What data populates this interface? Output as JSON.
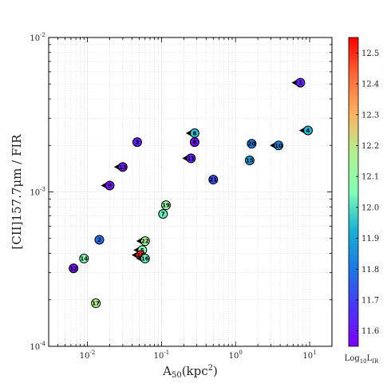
{
  "chart_data": {
    "type": "scatter",
    "xscale": "log",
    "yscale": "log",
    "xlim": [
      0.003,
      20
    ],
    "ylim": [
      0.0001,
      0.01
    ],
    "xlabel_main": "A",
    "xlabel_sub": "50",
    "xlabel_unit": "(kpc",
    "xlabel_sup": "2",
    "xlabel_close": ")",
    "ylabel": "[CII]157.7μm / FIR",
    "grid": true,
    "x_ticks": [
      {
        "value": 0.01,
        "base": "10",
        "exp": "-2"
      },
      {
        "value": 0.1,
        "base": "10",
        "exp": "-1"
      },
      {
        "value": 1,
        "base": "10",
        "exp": "0"
      },
      {
        "value": 10,
        "base": "10",
        "exp": "1"
      }
    ],
    "y_ticks": [
      {
        "value": 0.01,
        "base": "10",
        "exp": "-2"
      },
      {
        "value": 0.001,
        "base": "10",
        "exp": "-3"
      },
      {
        "value": 0.0001,
        "base": "10",
        "exp": "-4"
      }
    ],
    "colorbar": {
      "label_main": "Log",
      "label_sub": "10",
      "label_tail": "L",
      "label_tail_sub": "IR",
      "vmin": 11.55,
      "vmax": 12.55,
      "ticks": [
        "11.6",
        "11.7",
        "11.8",
        "11.9",
        "12.0",
        "12.1",
        "12.2",
        "12.3",
        "12.4",
        "12.5"
      ]
    },
    "points": [
      {
        "id": "1",
        "x": 7.5,
        "y": 0.0051,
        "logLIR": 11.62,
        "marker": "arrow"
      },
      {
        "id": "4",
        "x": 9.5,
        "y": 0.0025,
        "logLIR": 11.93,
        "marker": "arrow"
      },
      {
        "id": "8",
        "x": 0.28,
        "y": 0.0024,
        "logLIR": 11.95,
        "marker": "arrow"
      },
      {
        "id": "6",
        "x": 0.28,
        "y": 0.0021,
        "logLIR": 11.58,
        "marker": "circle"
      },
      {
        "id": "3",
        "x": 0.047,
        "y": 0.0021,
        "logLIR": 11.62,
        "marker": "circle"
      },
      {
        "id": "20",
        "x": 1.65,
        "y": 0.00205,
        "logLIR": 11.8,
        "marker": "circle"
      },
      {
        "id": "10",
        "x": 3.8,
        "y": 0.002,
        "logLIR": 11.82,
        "marker": "arrow"
      },
      {
        "id": "11",
        "x": 0.25,
        "y": 0.00165,
        "logLIR": 11.62,
        "marker": "arrow"
      },
      {
        "id": "15",
        "x": 1.55,
        "y": 0.0016,
        "logLIR": 11.88,
        "marker": "circle"
      },
      {
        "id": "13",
        "x": 0.03,
        "y": 0.00145,
        "logLIR": 11.6,
        "marker": "arrow"
      },
      {
        "id": "21",
        "x": 0.5,
        "y": 0.0012,
        "logLIR": 11.72,
        "marker": "circle"
      },
      {
        "id": "9",
        "x": 0.02,
        "y": 0.0011,
        "logLIR": 11.58,
        "marker": "arrow"
      },
      {
        "id": "19",
        "x": 0.115,
        "y": 0.00082,
        "logLIR": 12.1,
        "marker": "circle"
      },
      {
        "id": "7",
        "x": 0.105,
        "y": 0.00072,
        "logLIR": 12.02,
        "marker": "circle"
      },
      {
        "id": "2",
        "x": 0.0145,
        "y": 0.00049,
        "logLIR": 11.78,
        "marker": "circle"
      },
      {
        "id": "22",
        "x": 0.06,
        "y": 0.00048,
        "logLIR": 12.15,
        "marker": "arrow"
      },
      {
        "id": "5",
        "x": 0.055,
        "y": 0.00042,
        "logLIR": 12.05,
        "marker": "arrow"
      },
      {
        "id": "18",
        "x": 0.052,
        "y": 0.00039,
        "logLIR": 12.52,
        "marker": "arrow"
      },
      {
        "id": "16",
        "x": 0.06,
        "y": 0.00037,
        "logLIR": 12.02,
        "marker": "arrow"
      },
      {
        "id": "14",
        "x": 0.009,
        "y": 0.00037,
        "logLIR": 12.05,
        "marker": "circle"
      },
      {
        "id": "12",
        "x": 0.0065,
        "y": 0.00032,
        "logLIR": 11.58,
        "marker": "circle"
      },
      {
        "id": "17",
        "x": 0.013,
        "y": 0.00019,
        "logLIR": 12.18,
        "marker": "circle"
      }
    ]
  }
}
